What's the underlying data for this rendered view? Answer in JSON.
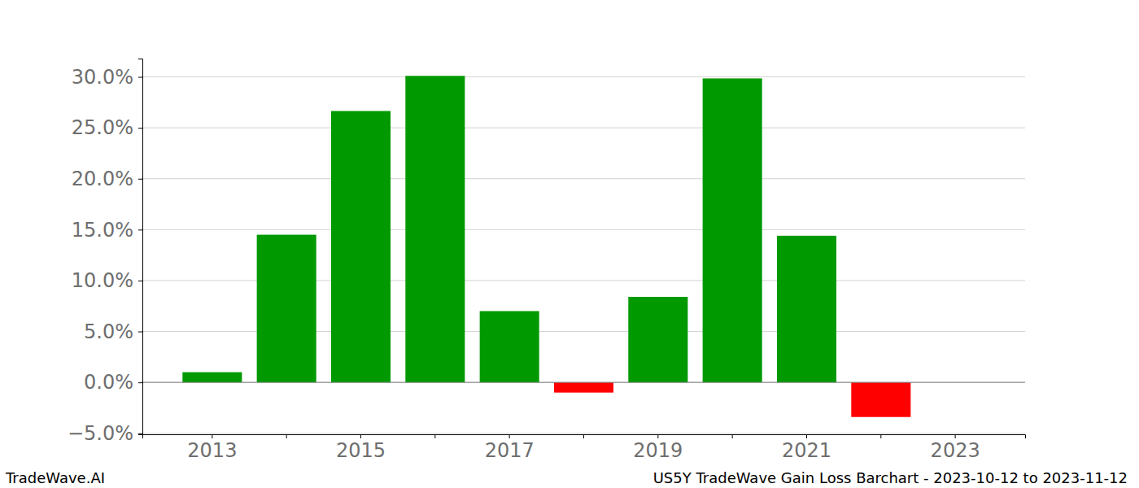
{
  "chart_data": {
    "type": "bar",
    "title": "US5Y TradeWave Gain Loss Barchart - 2023-10-12 to 2023-11-12",
    "annotations": [
      "TradeWave.AI"
    ],
    "categories": [
      "2013",
      null,
      "2015",
      null,
      "2017",
      null,
      "2019",
      null,
      "2021",
      null,
      "2023"
    ],
    "values": [
      1.0,
      14.5,
      26.65,
      30.1,
      7.0,
      -1.0,
      8.4,
      29.85,
      14.4,
      -3.4,
      0
    ],
    "colors": [
      "#009900",
      "#009900",
      "#009900",
      "#009900",
      "#009900",
      "#ff0000",
      "#009900",
      "#009900",
      "#009900",
      "#ff0000",
      "#009900"
    ],
    "ylim": [
      -5.1,
      31.8
    ],
    "yticks": [
      {
        "value": -5,
        "label": "−5.0%"
      },
      {
        "value": 0,
        "label": "0.0%"
      },
      {
        "value": 5,
        "label": "5.0%"
      },
      {
        "value": 10,
        "label": "10.0%"
      },
      {
        "value": 15,
        "label": "15.0%"
      },
      {
        "value": 20,
        "label": "20.0%"
      },
      {
        "value": 25,
        "label": "25.0%"
      },
      {
        "value": 30,
        "label": "30.0%"
      }
    ],
    "grid": true
  }
}
